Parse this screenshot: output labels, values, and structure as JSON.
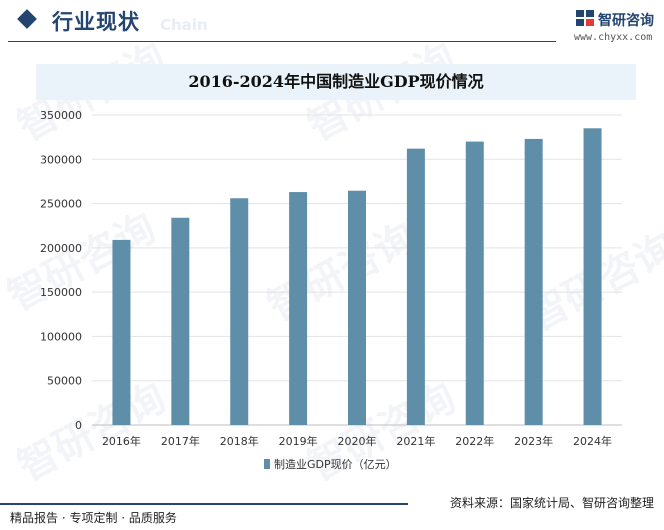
{
  "header": {
    "title": "行业现状",
    "title_ghost": "Chain"
  },
  "brand": {
    "name": "智研咨询",
    "url": "www.chyxx.com",
    "color": "#23456f"
  },
  "watermark_text": "智研咨询",
  "footer": {
    "left": "精品报告 · 专项定制 · 品质服务",
    "source": "资料来源：国家统计局、智研咨询整理"
  },
  "chart_data": {
    "type": "bar",
    "title": "2016-2024年中国制造业GDP现价情况",
    "categories": [
      "2016年",
      "2017年",
      "2018年",
      "2019年",
      "2020年",
      "2021年",
      "2022年",
      "2023年",
      "2024年"
    ],
    "series": [
      {
        "name": "制造业GDP现价（亿元）",
        "color": "#5f8fa8",
        "values": [
          209000,
          234000,
          256000,
          263000,
          264500,
          312000,
          320000,
          323000,
          335000
        ]
      }
    ],
    "xlabel": "",
    "ylabel": "",
    "ylim": [
      0,
      350000
    ],
    "yticks": [
      "0",
      "50000",
      "100000",
      "150000",
      "200000",
      "250000",
      "300000",
      "350000"
    ],
    "grid": true,
    "legend": "bottom"
  }
}
